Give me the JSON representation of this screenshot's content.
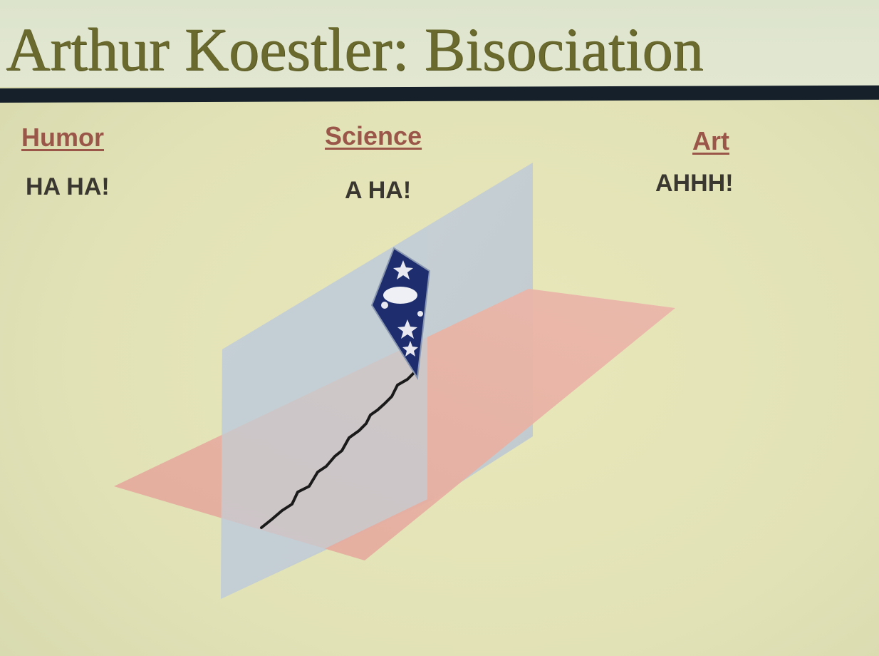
{
  "slide": {
    "title": "Arthur Koestler: Bisociation"
  },
  "columns": [
    {
      "heading": "Humor",
      "exclamation": "HA HA!"
    },
    {
      "heading": "Science",
      "exclamation": "A HA!"
    },
    {
      "heading": "Art",
      "exclamation": "AHHH!"
    }
  ],
  "diagram": {
    "elements": [
      "horizontal-plane",
      "vertical-plane",
      "kite",
      "kite-string"
    ],
    "colors": {
      "horizontal_plane": "#e6b0a4",
      "vertical_plane": "#c2ccd4",
      "kite_body": "#1d2d6e",
      "kite_pattern": "#e8e8f0",
      "kite_string": "#1a1a1a",
      "rule": "#15202a",
      "title": "#6a6a2e",
      "heading": "#9a5648"
    }
  }
}
